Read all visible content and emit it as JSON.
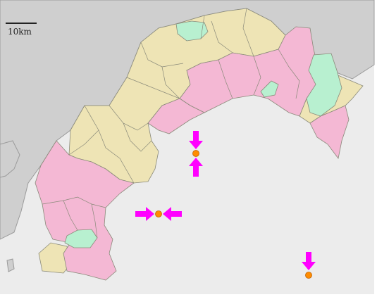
{
  "scale_bar": {
    "label": "10km"
  },
  "colors": {
    "sea": "#ececec",
    "outside_land": "#cfcfcf",
    "coast_line": "#9a9a9a",
    "region_beige": "#eee4b5",
    "region_pink": "#f4b8d4",
    "region_green": "#b8f0d0",
    "border": "#8a8a7a",
    "marker_arrow": "#ff00ff",
    "marker_dot": "#ff8c00",
    "page_margin": "#ffffff"
  },
  "markers": [
    {
      "name": "marker-east-of-coast",
      "arrows": [
        "from-above",
        "from-below"
      ]
    },
    {
      "name": "marker-south-west",
      "arrows": [
        "from-left",
        "from-right"
      ]
    },
    {
      "name": "marker-far-south-east",
      "arrows": [
        "from-above"
      ]
    }
  ]
}
